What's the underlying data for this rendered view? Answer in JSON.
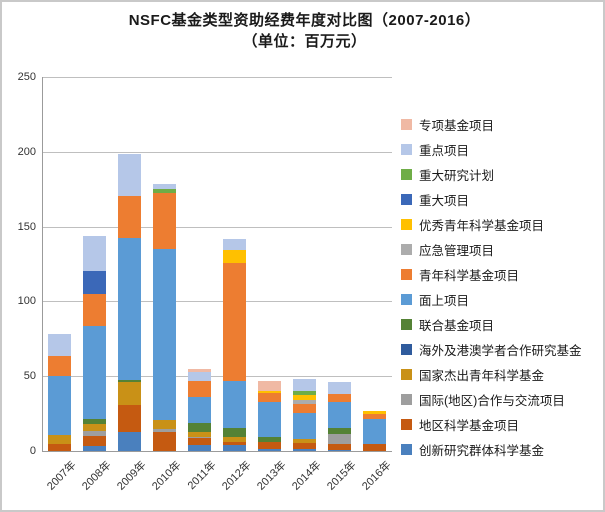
{
  "title": {
    "line1": "NSFC基金类型资助经费年度对比图（2007-2016）",
    "line2": "（单位：百万元）"
  },
  "chart_data": {
    "type": "bar",
    "stacked": true,
    "title": "NSFC基金类型资助经费年度对比图（2007-2016）",
    "subtitle": "（单位：百万元）",
    "categories": [
      "2007年",
      "2008年",
      "2009年",
      "2010年",
      "2011年",
      "2012年",
      "2013年",
      "2014年",
      "2015年",
      "2016年"
    ],
    "ylim": [
      0,
      250
    ],
    "yticks": [
      0,
      50,
      100,
      150,
      200,
      250
    ],
    "grid": true,
    "legend_position": "right",
    "legend_order": "reverse-of-stack",
    "stack_order": "series listed bottom-to-top",
    "series": [
      {
        "name": "创新研究群体科学基金",
        "color": "#4A80BE",
        "values": [
          0,
          3.3,
          12.5,
          0,
          4,
          4.2,
          1.5,
          1.3,
          1,
          0
        ]
      },
      {
        "name": "地区科学基金项目",
        "color": "#C55A11",
        "values": [
          5,
          6.7,
          18,
          12.7,
          4.5,
          2,
          4.3,
          3.8,
          4,
          4.5
        ]
      },
      {
        "name": "国际(地区)合作与交流项目",
        "color": "#9E9E9E",
        "values": [
          0,
          3.1,
          0,
          2.2,
          1,
          0,
          0,
          0,
          6.3,
          0
        ]
      },
      {
        "name": "国家杰出青年科学基金",
        "color": "#C99117",
        "values": [
          5.5,
          5.1,
          15.5,
          5.6,
          3.5,
          3.4,
          0,
          2.7,
          0,
          0
        ]
      },
      {
        "name": "海外及港澳学者合作研究基金",
        "color": "#2F5B9D",
        "values": [
          0,
          0,
          0,
          0,
          0,
          0,
          0,
          0,
          0,
          0
        ]
      },
      {
        "name": "联合基金项目",
        "color": "#548235",
        "values": [
          0,
          3.3,
          1.5,
          0,
          5.5,
          6,
          3.8,
          0,
          4.4,
          0
        ]
      },
      {
        "name": "面上项目",
        "color": "#5B9BD5",
        "values": [
          39.5,
          62.4,
          95,
          114.3,
          17.5,
          31.2,
          23,
          17.4,
          17.2,
          16.9
        ]
      },
      {
        "name": "青年科学基金项目",
        "color": "#ED7D31",
        "values": [
          13.5,
          21.1,
          28,
          37.6,
          11,
          79,
          6,
          6,
          5.1,
          3.6
        ]
      },
      {
        "name": "应急管理项目",
        "color": "#ACACAC",
        "values": [
          0,
          0,
          0,
          0,
          0,
          0,
          0,
          2.9,
          0,
          0
        ]
      },
      {
        "name": "优秀青年科学基金项目",
        "color": "#FFC000",
        "values": [
          0,
          0,
          0,
          0,
          0,
          8.5,
          1.8,
          3.3,
          0,
          1.8
        ]
      },
      {
        "name": "重大项目",
        "color": "#3B68B8",
        "values": [
          0,
          15.7,
          0,
          0,
          0,
          0,
          0,
          0,
          0,
          0
        ]
      },
      {
        "name": "重大研究计划",
        "color": "#6FAD47",
        "values": [
          0,
          0,
          0,
          2.7,
          0,
          0,
          0,
          2.7,
          0,
          0
        ]
      },
      {
        "name": "重点项目",
        "color": "#B5C7E8",
        "values": [
          15,
          23.4,
          28,
          3.5,
          6,
          7.3,
          0,
          7.8,
          8.2,
          0
        ]
      },
      {
        "name": "专项基金项目",
        "color": "#F0B9A4",
        "values": [
          0,
          0,
          0,
          0,
          2,
          0,
          6.7,
          0,
          0,
          0
        ]
      }
    ]
  }
}
